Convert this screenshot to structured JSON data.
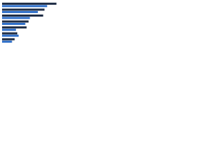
{
  "chart_data": {
    "type": "hbar",
    "categories": [
      null,
      null,
      null,
      null,
      null,
      null,
      null
    ],
    "series": [
      {
        "color": "#1f2d45",
        "values": [
          82,
          64,
          62,
          40,
          37,
          23,
          19
        ]
      },
      {
        "color": "#2f6fc9",
        "values": [
          68,
          54,
          42,
          35,
          21,
          25,
          15
        ]
      }
    ],
    "xlim": [
      0,
      100
    ]
  }
}
